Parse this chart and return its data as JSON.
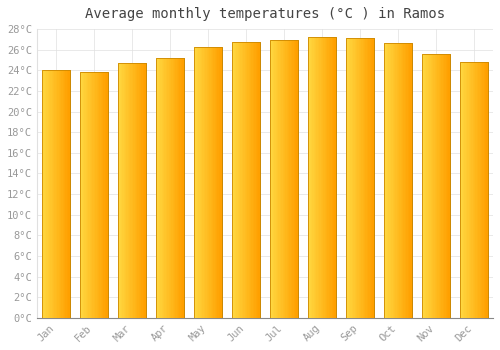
{
  "title": "Average monthly temperatures (°C ) in Ramos",
  "months": [
    "Jan",
    "Feb",
    "Mar",
    "Apr",
    "May",
    "Jun",
    "Jul",
    "Aug",
    "Sep",
    "Oct",
    "Nov",
    "Dec"
  ],
  "values": [
    24.0,
    23.8,
    24.7,
    25.2,
    26.3,
    26.7,
    26.9,
    27.2,
    27.1,
    26.6,
    25.6,
    24.8
  ],
  "bar_color_left": "#FFD740",
  "bar_color_right": "#FFA000",
  "bar_edge_color": "#CC8800",
  "background_color": "#FFFFFF",
  "grid_color": "#E0E0E0",
  "ylim": [
    0,
    28
  ],
  "yticks": [
    0,
    2,
    4,
    6,
    8,
    10,
    12,
    14,
    16,
    18,
    20,
    22,
    24,
    26,
    28
  ],
  "title_fontsize": 10,
  "tick_fontsize": 7.5,
  "tick_color": "#999999",
  "font_family": "monospace"
}
